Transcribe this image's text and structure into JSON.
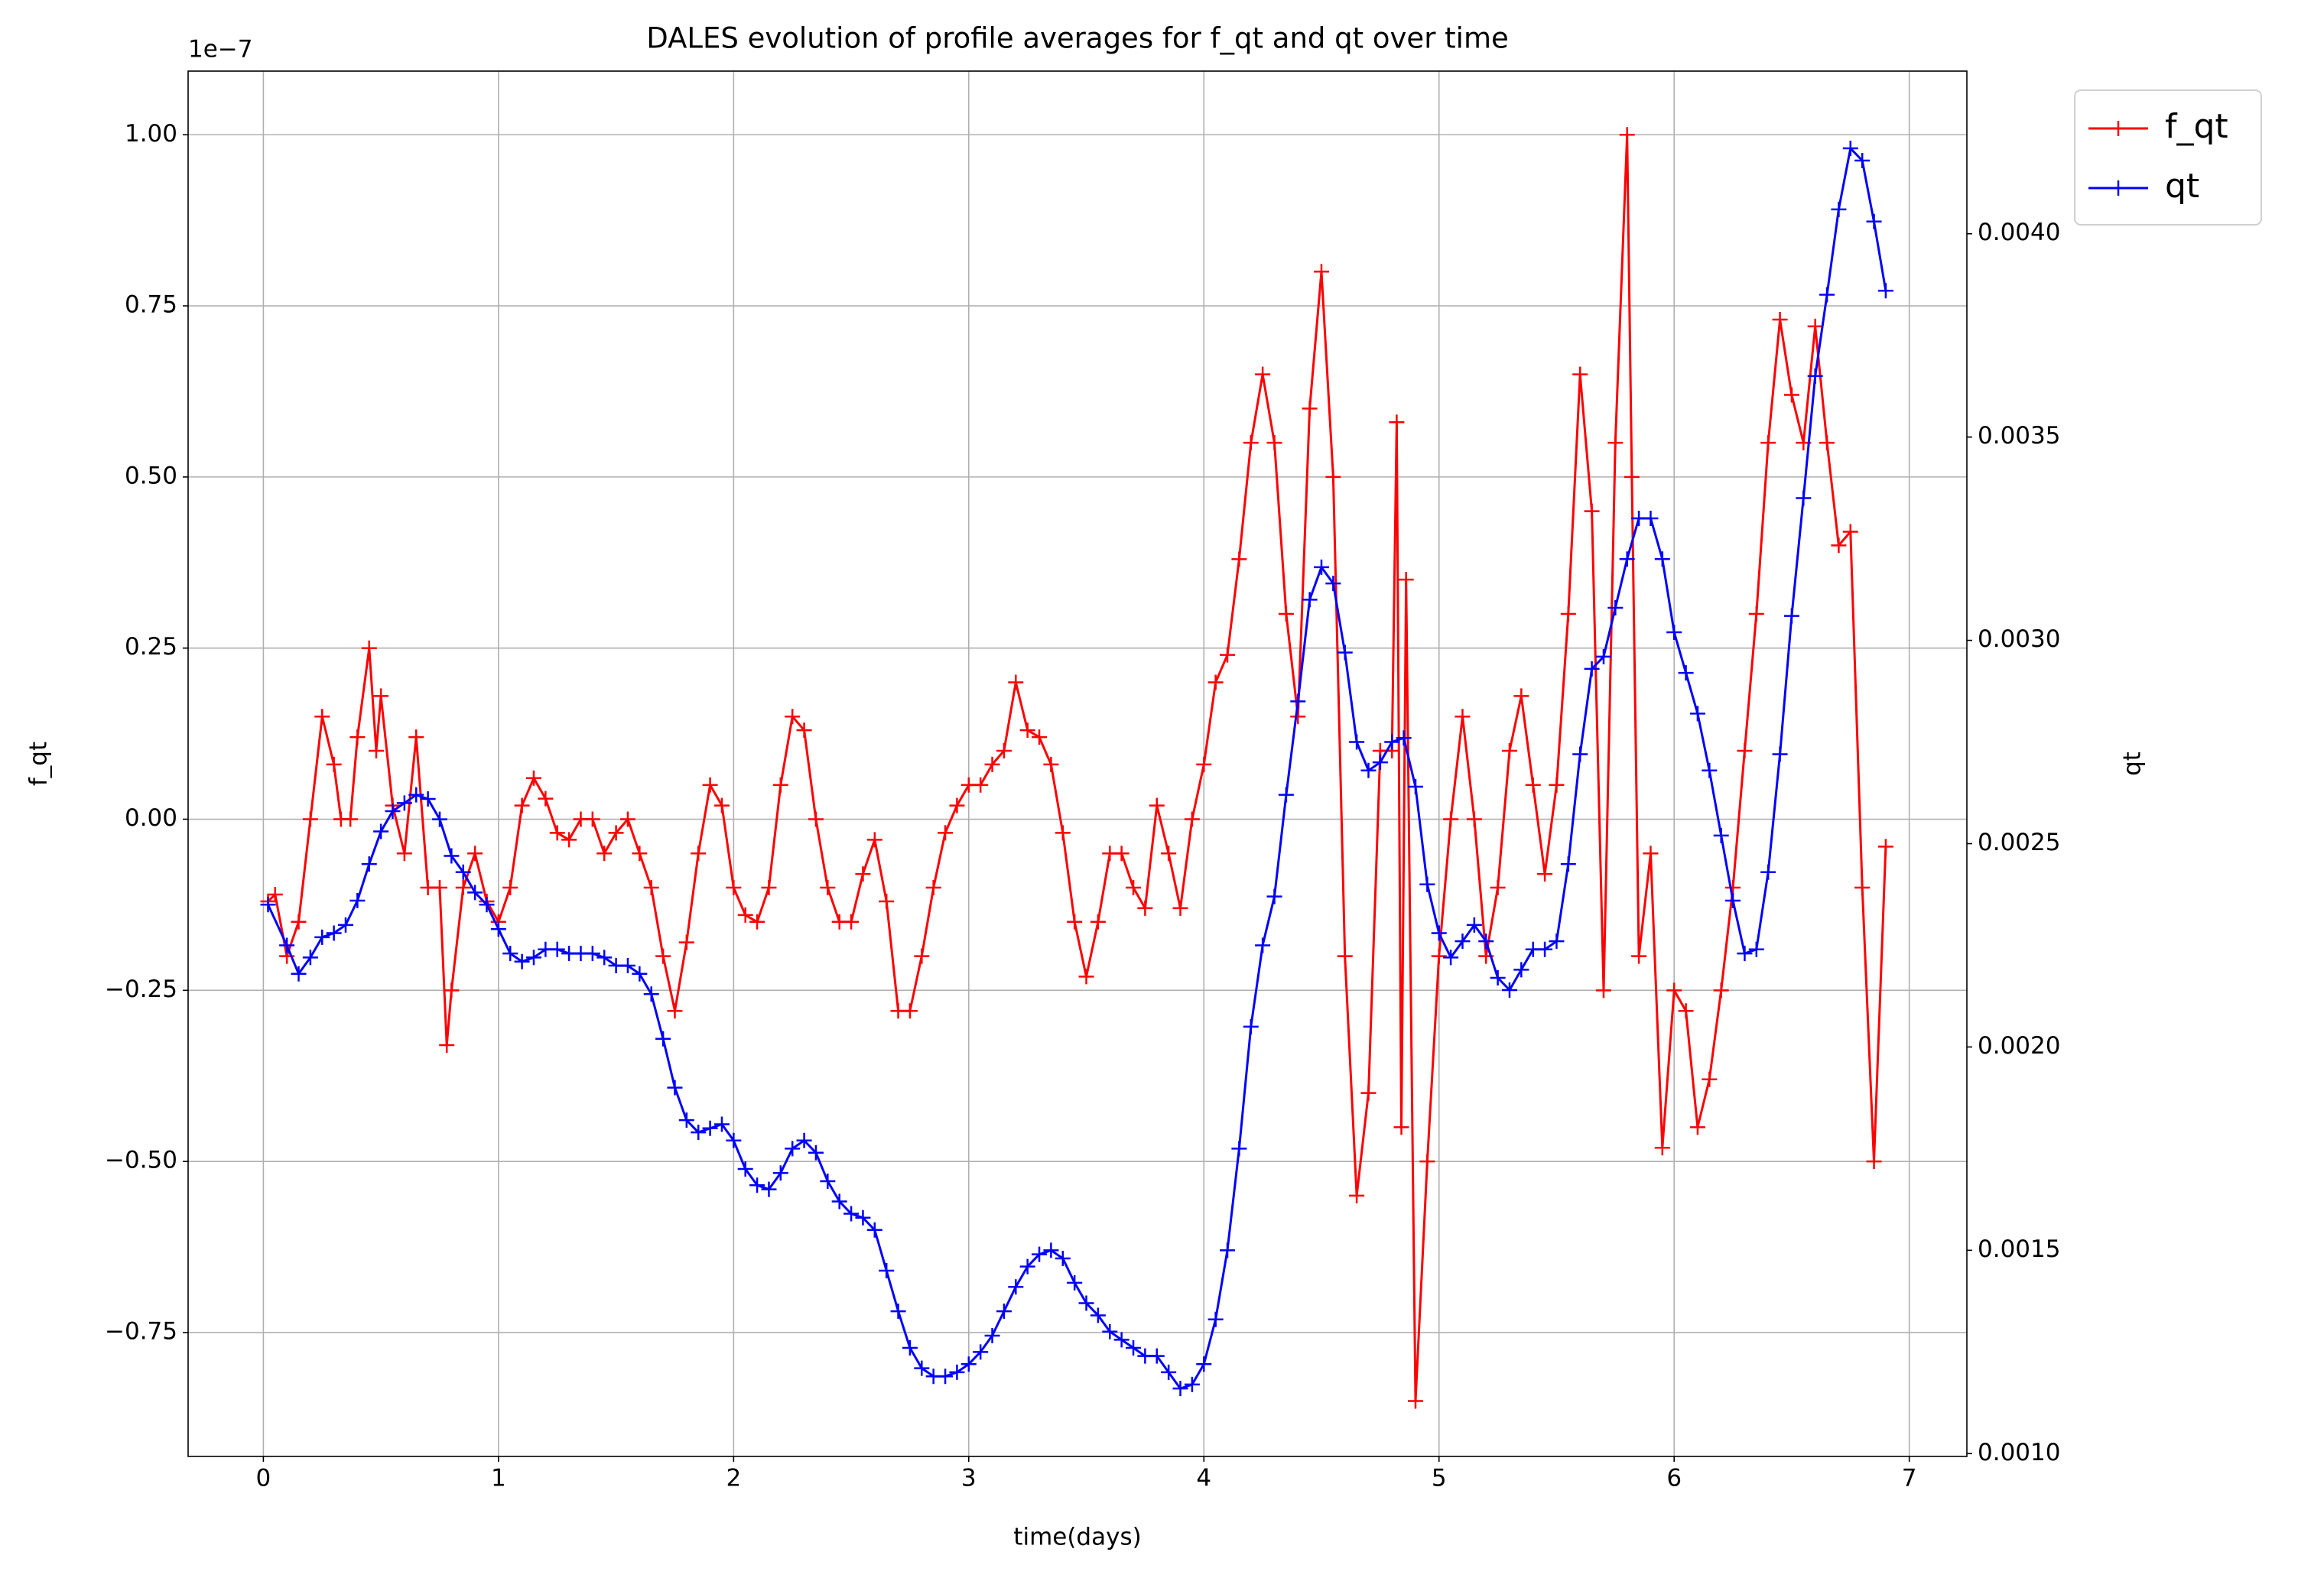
{
  "chart_data": {
    "type": "line",
    "title": "DALES evolution of profile averages for f_qt and qt over time",
    "xlabel": "time(days)",
    "ylabel": "f_qt",
    "y2label": "qt",
    "y_offset_label": "1e−7",
    "xlim": [
      -0.32,
      7.245
    ],
    "xticks": [
      0,
      1,
      2,
      3,
      4,
      5,
      6,
      7
    ],
    "ylim": [
      -0.931,
      1.093
    ],
    "yticks": [
      {
        "value": -0.75,
        "label": "−0.75"
      },
      {
        "value": -0.5,
        "label": "−0.50"
      },
      {
        "value": -0.25,
        "label": "−0.25"
      },
      {
        "value": 0,
        "label": "0.00"
      },
      {
        "value": 0.25,
        "label": "0.25"
      },
      {
        "value": 0.5,
        "label": "0.50"
      },
      {
        "value": 0.75,
        "label": "0.75"
      },
      {
        "value": 1,
        "label": "1.00"
      }
    ],
    "y2lim": [
      0.000993,
      0.0044
    ],
    "y2ticks": [
      {
        "value": 0.001,
        "label": "0.0010"
      },
      {
        "value": 0.0015,
        "label": "0.0015"
      },
      {
        "value": 0.002,
        "label": "0.0020"
      },
      {
        "value": 0.0025,
        "label": "0.0025"
      },
      {
        "value": 0.003,
        "label": "0.0030"
      },
      {
        "value": 0.0035,
        "label": "0.0035"
      },
      {
        "value": 0.004,
        "label": "0.0040"
      }
    ],
    "grid": true,
    "legend": "right",
    "marker": "+",
    "series": [
      {
        "name": "f_qt",
        "color": "#ff0000",
        "axis": "y",
        "x": [
          0.02,
          0.05,
          0.1,
          0.15,
          0.2,
          0.25,
          0.3,
          0.33,
          0.37,
          0.4,
          0.45,
          0.48,
          0.5,
          0.55,
          0.6,
          0.65,
          0.7,
          0.75,
          0.78,
          0.8,
          0.85,
          0.9,
          0.95,
          1.0,
          1.05,
          1.1,
          1.15,
          1.2,
          1.25,
          1.3,
          1.35,
          1.4,
          1.45,
          1.5,
          1.55,
          1.6,
          1.65,
          1.7,
          1.75,
          1.8,
          1.85,
          1.9,
          1.95,
          2.0,
          2.05,
          2.1,
          2.15,
          2.2,
          2.25,
          2.3,
          2.35,
          2.4,
          2.45,
          2.5,
          2.55,
          2.6,
          2.65,
          2.7,
          2.75,
          2.8,
          2.85,
          2.9,
          2.95,
          3.0,
          3.05,
          3.1,
          3.15,
          3.2,
          3.25,
          3.3,
          3.35,
          3.4,
          3.45,
          3.5,
          3.55,
          3.6,
          3.65,
          3.7,
          3.75,
          3.8,
          3.85,
          3.9,
          3.95,
          4.0,
          4.05,
          4.1,
          4.15,
          4.2,
          4.25,
          4.3,
          4.35,
          4.4,
          4.45,
          4.5,
          4.55,
          4.6,
          4.65,
          4.7,
          4.75,
          4.8,
          4.82,
          4.84,
          4.86,
          4.9,
          4.95,
          5.0,
          5.05,
          5.1,
          5.15,
          5.2,
          5.25,
          5.3,
          5.35,
          5.4,
          5.45,
          5.5,
          5.55,
          5.6,
          5.65,
          5.7,
          5.75,
          5.8,
          5.82,
          5.85,
          5.9,
          5.95,
          6.0,
          6.05,
          6.1,
          6.15,
          6.2,
          6.25,
          6.3,
          6.35,
          6.4,
          6.45,
          6.5,
          6.55,
          6.6,
          6.65,
          6.7,
          6.75,
          6.8,
          6.85,
          6.9
        ],
        "values": [
          -0.12,
          -0.11,
          -0.2,
          -0.15,
          0.0,
          0.15,
          0.08,
          0.0,
          0.0,
          0.12,
          0.25,
          0.1,
          0.18,
          0.02,
          -0.05,
          0.12,
          -0.1,
          -0.1,
          -0.33,
          -0.25,
          -0.1,
          -0.05,
          -0.12,
          -0.15,
          -0.1,
          0.02,
          0.06,
          0.03,
          -0.02,
          -0.03,
          0.0,
          0.0,
          -0.05,
          -0.02,
          0.0,
          -0.05,
          -0.1,
          -0.2,
          -0.28,
          -0.18,
          -0.05,
          0.05,
          0.02,
          -0.1,
          -0.14,
          -0.15,
          -0.1,
          0.05,
          0.15,
          0.13,
          0.0,
          -0.1,
          -0.15,
          -0.15,
          -0.08,
          -0.03,
          -0.12,
          -0.28,
          -0.28,
          -0.2,
          -0.1,
          -0.02,
          0.02,
          0.05,
          0.05,
          0.08,
          0.1,
          0.2,
          0.13,
          0.12,
          0.08,
          -0.02,
          -0.15,
          -0.23,
          -0.15,
          -0.05,
          -0.05,
          -0.1,
          -0.13,
          0.02,
          -0.05,
          -0.13,
          0.0,
          0.08,
          0.2,
          0.24,
          0.38,
          0.55,
          0.65,
          0.55,
          0.3,
          0.15,
          0.6,
          0.8,
          0.5,
          -0.2,
          -0.55,
          -0.4,
          0.1,
          0.1,
          0.58,
          -0.45,
          0.35,
          -0.85,
          -0.5,
          -0.2,
          0.0,
          0.15,
          0.0,
          -0.2,
          -0.1,
          0.1,
          0.18,
          0.05,
          -0.08,
          0.05,
          0.3,
          0.65,
          0.45,
          -0.25,
          0.55,
          1.0,
          0.5,
          -0.2,
          -0.05,
          -0.48,
          -0.25,
          -0.28,
          -0.45,
          -0.38,
          -0.25,
          -0.1,
          0.1,
          0.3,
          0.55,
          0.73,
          0.62,
          0.55,
          0.72,
          0.55,
          0.4,
          0.42,
          -0.1,
          -0.5,
          -0.04
        ]
      },
      {
        "name": "qt",
        "color": "#0000ff",
        "axis": "y2",
        "x": [
          0.02,
          0.1,
          0.15,
          0.2,
          0.25,
          0.3,
          0.35,
          0.4,
          0.45,
          0.5,
          0.55,
          0.6,
          0.65,
          0.7,
          0.75,
          0.8,
          0.85,
          0.9,
          0.95,
          1.0,
          1.05,
          1.1,
          1.15,
          1.2,
          1.25,
          1.3,
          1.35,
          1.4,
          1.45,
          1.5,
          1.55,
          1.6,
          1.65,
          1.7,
          1.75,
          1.8,
          1.85,
          1.9,
          1.95,
          2.0,
          2.05,
          2.1,
          2.15,
          2.2,
          2.25,
          2.3,
          2.35,
          2.4,
          2.45,
          2.5,
          2.55,
          2.6,
          2.65,
          2.7,
          2.75,
          2.8,
          2.85,
          2.9,
          2.95,
          3.0,
          3.05,
          3.1,
          3.15,
          3.2,
          3.25,
          3.3,
          3.35,
          3.4,
          3.45,
          3.5,
          3.55,
          3.6,
          3.65,
          3.7,
          3.75,
          3.8,
          3.85,
          3.9,
          3.95,
          4.0,
          4.05,
          4.1,
          4.15,
          4.2,
          4.25,
          4.3,
          4.35,
          4.4,
          4.45,
          4.5,
          4.55,
          4.6,
          4.65,
          4.7,
          4.75,
          4.8,
          4.85,
          4.9,
          4.95,
          5.0,
          5.05,
          5.1,
          5.15,
          5.2,
          5.25,
          5.3,
          5.35,
          5.4,
          5.45,
          5.5,
          5.55,
          5.6,
          5.65,
          5.7,
          5.75,
          5.8,
          5.85,
          5.9,
          5.95,
          6.0,
          6.05,
          6.1,
          6.15,
          6.2,
          6.25,
          6.3,
          6.35,
          6.4,
          6.45,
          6.5,
          6.55,
          6.6,
          6.65,
          6.7,
          6.75,
          6.8,
          6.85,
          6.9
        ],
        "values": [
          0.00235,
          0.00225,
          0.00218,
          0.00222,
          0.00227,
          0.00228,
          0.0023,
          0.00236,
          0.00245,
          0.00253,
          0.00258,
          0.0026,
          0.00262,
          0.00261,
          0.00256,
          0.00247,
          0.00243,
          0.00238,
          0.00235,
          0.00229,
          0.00223,
          0.00221,
          0.00222,
          0.00224,
          0.00224,
          0.00223,
          0.00223,
          0.00223,
          0.00222,
          0.0022,
          0.0022,
          0.00218,
          0.00213,
          0.00202,
          0.0019,
          0.00182,
          0.00179,
          0.0018,
          0.00181,
          0.00177,
          0.0017,
          0.00166,
          0.00165,
          0.00169,
          0.00175,
          0.00177,
          0.00174,
          0.00167,
          0.00162,
          0.00159,
          0.00158,
          0.00155,
          0.00145,
          0.00135,
          0.00126,
          0.00121,
          0.00119,
          0.00119,
          0.0012,
          0.00122,
          0.00125,
          0.00129,
          0.00135,
          0.00141,
          0.00146,
          0.00149,
          0.0015,
          0.00148,
          0.00142,
          0.00137,
          0.00134,
          0.0013,
          0.00128,
          0.00126,
          0.00124,
          0.00124,
          0.0012,
          0.00116,
          0.00117,
          0.00122,
          0.00133,
          0.0015,
          0.00175,
          0.00205,
          0.00225,
          0.00237,
          0.00262,
          0.00285,
          0.0031,
          0.00318,
          0.00314,
          0.00297,
          0.00275,
          0.00268,
          0.0027,
          0.00275,
          0.00276,
          0.00264,
          0.0024,
          0.00228,
          0.00222,
          0.00226,
          0.0023,
          0.00226,
          0.00217,
          0.00214,
          0.00219,
          0.00224,
          0.00224,
          0.00226,
          0.00245,
          0.00272,
          0.00293,
          0.00296,
          0.00308,
          0.0032,
          0.0033,
          0.0033,
          0.0032,
          0.00302,
          0.00292,
          0.00282,
          0.00268,
          0.00252,
          0.00236,
          0.00223,
          0.00224,
          0.00243,
          0.00272,
          0.00306,
          0.00335,
          0.00365,
          0.00385,
          0.00406,
          0.00421,
          0.00418,
          0.00403,
          0.00386
        ]
      }
    ]
  }
}
